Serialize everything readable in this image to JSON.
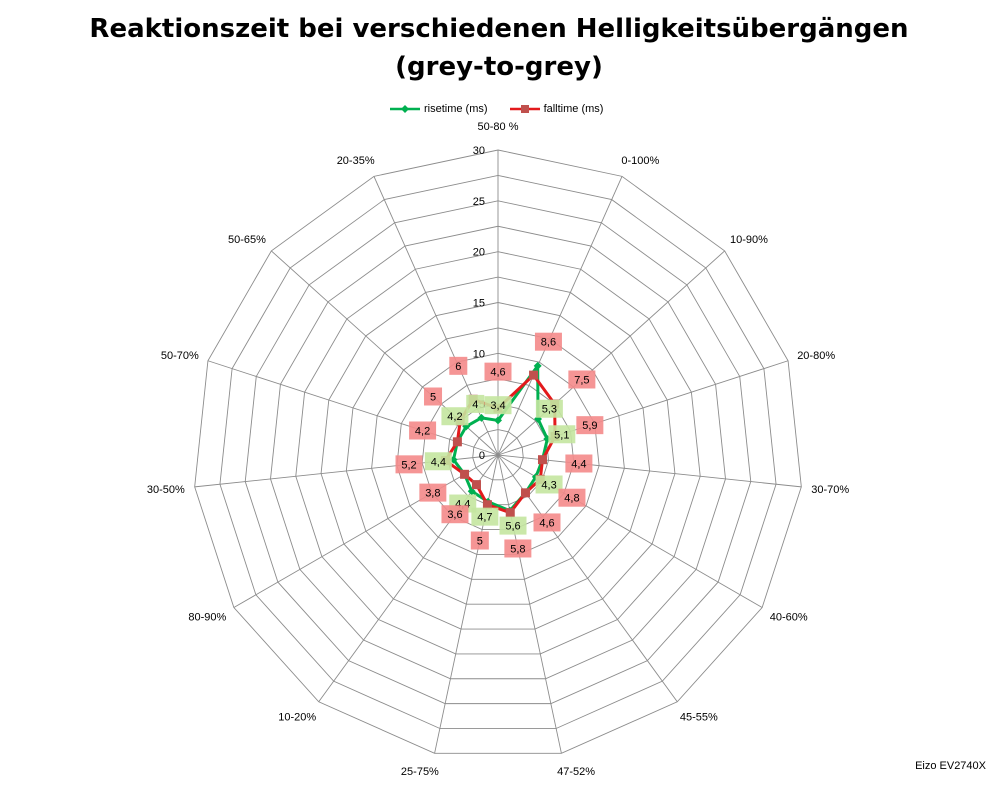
{
  "chart_data": {
    "type": "radar",
    "title_line1": "Reaktionszeit bei verschiedenen Helligkeitsübergängen",
    "title_line2": "(grey-to-grey)",
    "credit": "Eizo EV2740X",
    "axis_range": [
      0,
      30
    ],
    "ticks": [
      "0",
      "5",
      "10",
      "15",
      "20",
      "25",
      "30"
    ],
    "categories": [
      "50-80 %",
      "0-100%",
      "10-90%",
      "20-80%",
      "30-70%",
      "40-60%",
      "45-55%",
      "47-52%",
      "25-75%",
      "10-20%",
      "80-90%",
      "30-50%",
      "50-70%",
      "50-65%",
      "20-35%"
    ],
    "series": [
      {
        "name": "risetime (ms)",
        "color": "#00b050",
        "marker": "diamond",
        "label_bg": "#c4e6a0",
        "values": [
          3.4,
          9.6,
          5.3,
          5.1,
          4.4,
          4.3,
          4.6,
          5.6,
          4.7,
          4.4,
          3.8,
          4.4,
          4.2,
          4.2,
          4.0
        ],
        "labels": [
          "3,4",
          "",
          "5,3",
          "5,1",
          "",
          "4,3",
          "",
          "5,6",
          "4,7",
          "4,4",
          "",
          "4,4",
          "",
          "4,2",
          "4"
        ]
      },
      {
        "name": "falltime (ms)",
        "color": "#e31a1c",
        "marker": "square",
        "label_bg": "#f48a8a",
        "values": [
          4.6,
          8.6,
          7.5,
          5.9,
          4.4,
          4.8,
          4.6,
          5.8,
          5.0,
          3.6,
          3.8,
          5.2,
          4.2,
          5.0,
          6.0
        ],
        "labels": [
          "4,6",
          "8,6",
          "7,5",
          "5,9",
          "4,4",
          "4,8",
          "4,6",
          "5,8",
          "5",
          "3,6",
          "3,8",
          "5,2",
          "4,2",
          "5",
          "6"
        ]
      }
    ]
  }
}
